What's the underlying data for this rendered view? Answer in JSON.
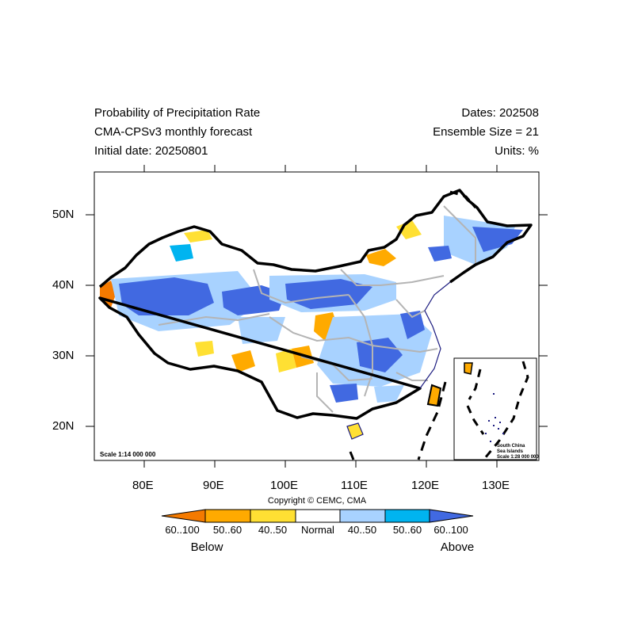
{
  "header": {
    "title": "Probability of Precipitation Rate",
    "model": "CMA-CPSv3 monthly forecast",
    "initial_date": "Initial date: 20250801",
    "dates": "Dates: 202508",
    "ensemble": "Ensemble Size = 21",
    "units": "Units: %"
  },
  "axes": {
    "lon_ticks": [
      "80E",
      "90E",
      "100E",
      "110E",
      "120E",
      "130E"
    ],
    "lat_ticks": [
      "50N",
      "40N",
      "30N",
      "20N"
    ]
  },
  "map": {
    "scale_main": "Scale 1:14 000 000",
    "inset_label_1": "South China",
    "inset_label_2": "Sea Islands",
    "inset_scale": "Scale 1:28 000 000"
  },
  "copyright": "Copyright © CEMC, CMA",
  "colorbar": {
    "labels": [
      "60..100",
      "50..60",
      "40..50",
      "Normal",
      "40..50",
      "50..60",
      "60..100"
    ],
    "colors": [
      "#f47a00",
      "#ffaa00",
      "#ffe033",
      "#ffffff",
      "#a8d2ff",
      "#00b4f0",
      "#4169e1"
    ],
    "below": "Below",
    "above": "Above"
  }
}
